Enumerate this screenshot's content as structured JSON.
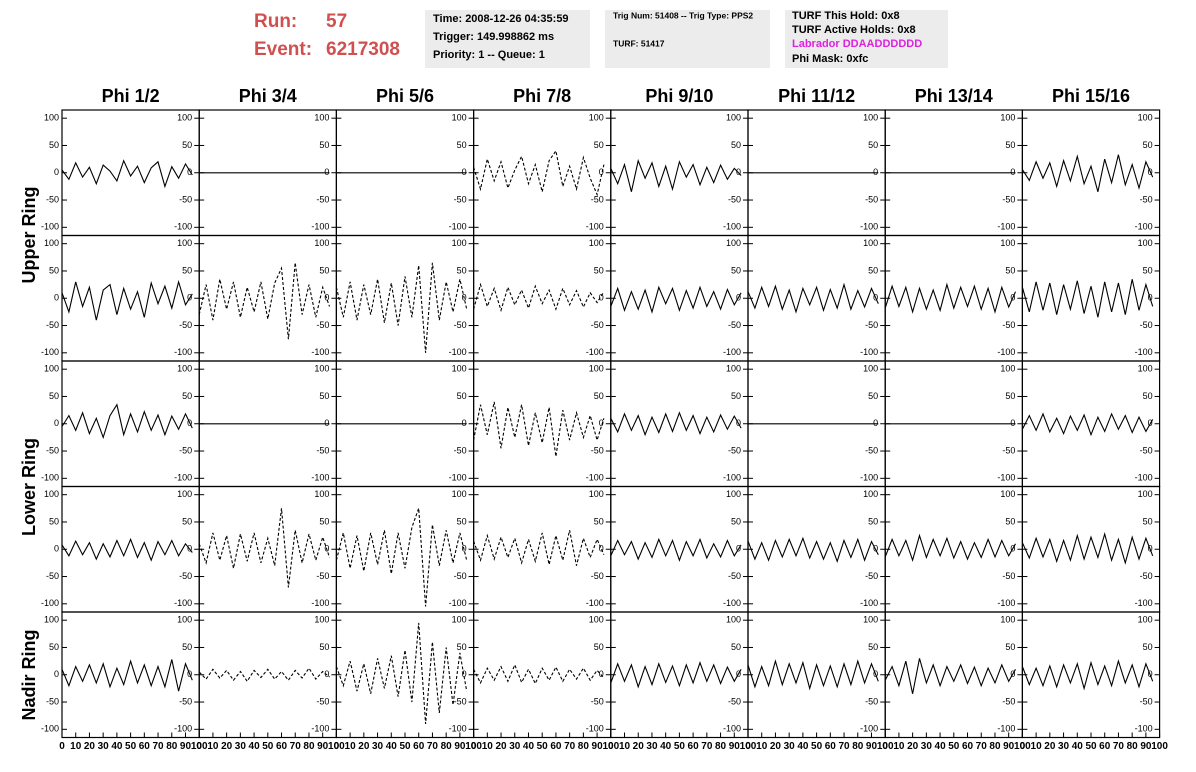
{
  "header": {
    "run_label": "Run:",
    "run": "57",
    "event_label": "Event:",
    "event": "6217308",
    "box1": [
      "Time: 2008-12-26 04:35:59",
      "Trigger: 149.998862 ms",
      "Priority: 1 -- Queue: 1"
    ],
    "box2": [
      "Trig Num: 51408 -- Trig Type: PPS2",
      "TURF: 51417"
    ],
    "box3": [
      "TURF This Hold: 0x8",
      "TURF Active Holds: 0x8",
      "Labrador DDAADDDDDD",
      "Phi Mask: 0xfc"
    ]
  },
  "chart_data": {
    "type": "line",
    "columns": [
      "Phi 1/2",
      "Phi 3/4",
      "Phi 5/6",
      "Phi 7/8",
      "Phi 9/10",
      "Phi 11/12",
      "Phi 13/14",
      "Phi 15/16"
    ],
    "rows": [
      "Upper Ring",
      "Lower Ring",
      "Nadir Ring"
    ],
    "x": [
      0,
      5,
      10,
      15,
      20,
      25,
      30,
      35,
      40,
      45,
      50,
      55,
      60,
      65,
      70,
      75,
      80,
      85,
      90,
      95
    ],
    "xlim": [
      0,
      100
    ],
    "xticks": [
      0,
      10,
      20,
      30,
      40,
      50,
      60,
      70,
      80,
      90,
      100
    ],
    "ylim": [
      -115,
      115
    ],
    "yticks": [
      100,
      50,
      0,
      -50,
      -100
    ],
    "color": "#000000",
    "panels": [
      [
        {
          "style": "solid",
          "values": [
            5,
            -12,
            18,
            -8,
            10,
            -20,
            14,
            3,
            -15,
            22,
            -6,
            12,
            -18,
            9,
            20,
            -25,
            11,
            -10,
            16,
            -4
          ]
        },
        {
          "style": "solid",
          "values": [
            0,
            0,
            0,
            0,
            0,
            0,
            0,
            0,
            0,
            0,
            0,
            0,
            0,
            0,
            0,
            0,
            0,
            0,
            0,
            0
          ]
        },
        {
          "style": "solid",
          "values": [
            0,
            0,
            0,
            0,
            0,
            0,
            0,
            0,
            0,
            0,
            0,
            0,
            0,
            0,
            0,
            0,
            0,
            0,
            0,
            0
          ]
        },
        {
          "style": "dashed",
          "values": [
            10,
            -30,
            25,
            -15,
            20,
            -28,
            5,
            30,
            -20,
            15,
            -35,
            22,
            40,
            -25,
            12,
            -30,
            28,
            -10,
            -40,
            15
          ]
        },
        {
          "style": "solid",
          "values": [
            8,
            -20,
            15,
            -35,
            22,
            -10,
            18,
            -25,
            12,
            -30,
            20,
            -8,
            15,
            -22,
            10,
            -18,
            14,
            -12,
            8,
            -5
          ]
        },
        {
          "style": "solid",
          "values": [
            0,
            0,
            0,
            0,
            0,
            0,
            0,
            0,
            0,
            0,
            0,
            0,
            0,
            0,
            0,
            0,
            0,
            0,
            0,
            0
          ]
        },
        {
          "style": "solid",
          "values": [
            0,
            0,
            0,
            0,
            0,
            0,
            0,
            0,
            0,
            0,
            0,
            0,
            0,
            0,
            0,
            0,
            0,
            0,
            0,
            0
          ]
        },
        {
          "style": "solid",
          "values": [
            6,
            -14,
            20,
            -10,
            18,
            -25,
            22,
            -15,
            30,
            -20,
            12,
            -35,
            25,
            -18,
            33,
            -22,
            15,
            -28,
            20,
            -8
          ]
        }
      ],
      [
        {
          "style": "solid",
          "values": [
            10,
            -25,
            30,
            -15,
            20,
            -40,
            15,
            25,
            -30,
            18,
            -20,
            12,
            -35,
            28,
            -10,
            22,
            -18,
            30,
            -12,
            8
          ]
        },
        {
          "style": "dashed",
          "values": [
            -30,
            25,
            -40,
            35,
            -20,
            30,
            -35,
            20,
            -25,
            30,
            -38,
            28,
            55,
            -75,
            65,
            -30,
            25,
            -35,
            20,
            -15
          ]
        },
        {
          "style": "dashed",
          "values": [
            20,
            -35,
            30,
            -40,
            25,
            -30,
            35,
            -45,
            28,
            -50,
            40,
            -35,
            60,
            -100,
            65,
            -40,
            30,
            -25,
            35,
            -20
          ]
        },
        {
          "style": "dashed",
          "values": [
            -20,
            25,
            -15,
            18,
            -22,
            20,
            -12,
            15,
            -18,
            22,
            -10,
            15,
            -20,
            18,
            -12,
            14,
            -16,
            10,
            -8,
            12
          ]
        },
        {
          "style": "solid",
          "values": [
            -15,
            18,
            -22,
            12,
            -20,
            15,
            -25,
            20,
            -10,
            18,
            -22,
            14,
            -18,
            20,
            -15,
            12,
            -20,
            16,
            -12,
            10
          ]
        },
        {
          "style": "solid",
          "values": [
            12,
            -18,
            20,
            -15,
            22,
            -20,
            15,
            -25,
            18,
            -12,
            20,
            -22,
            16,
            -18,
            25,
            -20,
            14,
            -16,
            18,
            -10
          ]
        },
        {
          "style": "solid",
          "values": [
            -18,
            22,
            -15,
            20,
            -25,
            18,
            -20,
            15,
            -22,
            25,
            -18,
            20,
            -15,
            22,
            -20,
            18,
            -25,
            20,
            -16,
            12
          ]
        },
        {
          "style": "solid",
          "values": [
            20,
            -25,
            30,
            -22,
            28,
            -30,
            25,
            -20,
            32,
            -28,
            22,
            -35,
            30,
            -25,
            28,
            -30,
            35,
            -22,
            25,
            -15
          ]
        }
      ],
      [
        {
          "style": "solid",
          "values": [
            -5,
            15,
            -12,
            20,
            -18,
            10,
            -25,
            15,
            35,
            -20,
            18,
            -15,
            22,
            -12,
            16,
            -20,
            14,
            -10,
            18,
            -8
          ]
        },
        {
          "style": "solid",
          "values": [
            0,
            0,
            0,
            0,
            0,
            0,
            0,
            0,
            0,
            0,
            0,
            0,
            0,
            0,
            0,
            0,
            0,
            0,
            0,
            0
          ]
        },
        {
          "style": "solid",
          "values": [
            0,
            0,
            0,
            0,
            0,
            0,
            0,
            0,
            0,
            0,
            0,
            0,
            0,
            0,
            0,
            0,
            0,
            0,
            0,
            0
          ]
        },
        {
          "style": "dashed",
          "values": [
            -30,
            35,
            -20,
            40,
            -45,
            30,
            -25,
            35,
            -40,
            20,
            -35,
            30,
            -60,
            25,
            -30,
            20,
            -25,
            15,
            -30,
            10
          ]
        },
        {
          "style": "solid",
          "values": [
            10,
            -15,
            18,
            -12,
            15,
            -20,
            12,
            -16,
            18,
            -14,
            20,
            -12,
            15,
            -18,
            12,
            -15,
            16,
            -10,
            14,
            -8
          ]
        },
        {
          "style": "solid",
          "values": [
            0,
            0,
            0,
            0,
            0,
            0,
            0,
            0,
            0,
            0,
            0,
            0,
            0,
            0,
            0,
            0,
            0,
            0,
            0,
            0
          ]
        },
        {
          "style": "solid",
          "values": [
            0,
            0,
            0,
            0,
            0,
            0,
            0,
            0,
            0,
            0,
            0,
            0,
            0,
            0,
            0,
            0,
            0,
            0,
            0,
            0
          ]
        },
        {
          "style": "solid",
          "values": [
            -10,
            15,
            -12,
            18,
            -15,
            10,
            -18,
            14,
            -12,
            16,
            -20,
            12,
            -14,
            18,
            -10,
            15,
            -16,
            12,
            -14,
            8
          ]
        }
      ],
      [
        {
          "style": "solid",
          "values": [
            8,
            -12,
            15,
            -10,
            12,
            -18,
            10,
            -14,
            16,
            -12,
            18,
            -15,
            12,
            -20,
            14,
            -10,
            16,
            -12,
            10,
            -6
          ]
        },
        {
          "style": "dashed",
          "values": [
            10,
            -25,
            30,
            -20,
            25,
            -35,
            28,
            -22,
            30,
            -25,
            20,
            -30,
            75,
            -70,
            35,
            -25,
            28,
            -20,
            22,
            -15
          ]
        },
        {
          "style": "dashed",
          "values": [
            -20,
            30,
            -35,
            25,
            -40,
            30,
            -28,
            35,
            -45,
            30,
            -35,
            40,
            75,
            -105,
            45,
            -30,
            35,
            -25,
            30,
            -20
          ]
        },
        {
          "style": "dashed",
          "values": [
            15,
            -20,
            25,
            -18,
            22,
            -15,
            20,
            -25,
            18,
            -22,
            30,
            -28,
            25,
            -20,
            35,
            -30,
            20,
            -15,
            18,
            -10
          ]
        },
        {
          "style": "solid",
          "values": [
            -12,
            16,
            -10,
            14,
            -18,
            12,
            -15,
            18,
            -12,
            16,
            -20,
            14,
            -12,
            18,
            -16,
            10,
            -14,
            16,
            -12,
            8
          ]
        },
        {
          "style": "solid",
          "values": [
            15,
            -18,
            12,
            -20,
            16,
            -14,
            18,
            -12,
            20,
            -16,
            14,
            -18,
            12,
            -22,
            16,
            -15,
            18,
            -20,
            14,
            -10
          ]
        },
        {
          "style": "solid",
          "values": [
            -14,
            18,
            -12,
            16,
            -20,
            25,
            -15,
            18,
            -12,
            20,
            -16,
            14,
            -18,
            12,
            -15,
            18,
            -14,
            16,
            -12,
            10
          ]
        },
        {
          "style": "solid",
          "values": [
            12,
            -16,
            20,
            -14,
            18,
            -22,
            16,
            -20,
            25,
            -18,
            22,
            -15,
            28,
            -20,
            18,
            -25,
            22,
            -18,
            20,
            -12
          ]
        }
      ],
      [
        {
          "style": "solid",
          "values": [
            10,
            -20,
            15,
            -12,
            18,
            -15,
            20,
            -22,
            12,
            -18,
            25,
            -15,
            18,
            -20,
            15,
            -22,
            28,
            -30,
            20,
            -10
          ]
        },
        {
          "style": "dashed",
          "values": [
            5,
            -8,
            10,
            -6,
            8,
            -10,
            6,
            -12,
            8,
            -5,
            10,
            -8,
            6,
            -10,
            8,
            -6,
            12,
            -8,
            6,
            -4
          ]
        },
        {
          "style": "dashed",
          "values": [
            15,
            -20,
            25,
            -30,
            20,
            -35,
            30,
            -25,
            35,
            -40,
            45,
            -50,
            95,
            -90,
            60,
            -70,
            50,
            -55,
            40,
            -30
          ]
        },
        {
          "style": "dashed",
          "values": [
            10,
            -15,
            12,
            -10,
            15,
            -12,
            18,
            -14,
            10,
            -16,
            12,
            -10,
            14,
            -12,
            10,
            -8,
            12,
            -10,
            8,
            -6
          ]
        },
        {
          "style": "solid",
          "values": [
            -15,
            20,
            -12,
            18,
            -22,
            15,
            -18,
            20,
            -14,
            16,
            -20,
            18,
            -15,
            22,
            -12,
            18,
            -16,
            14,
            -12,
            10
          ]
        },
        {
          "style": "solid",
          "values": [
            18,
            -22,
            15,
            -20,
            25,
            -18,
            20,
            -15,
            22,
            -25,
            18,
            -20,
            16,
            -22,
            20,
            -18,
            25,
            -15,
            20,
            -12
          ]
        },
        {
          "style": "solid",
          "values": [
            -10,
            15,
            -20,
            25,
            -35,
            30,
            -15,
            18,
            -20,
            15,
            -12,
            18,
            -16,
            14,
            -20,
            12,
            -15,
            18,
            -12,
            10
          ]
        },
        {
          "style": "solid",
          "values": [
            15,
            -18,
            12,
            -20,
            16,
            -22,
            18,
            -15,
            20,
            -25,
            22,
            -18,
            16,
            -20,
            25,
            -15,
            18,
            -22,
            20,
            -12
          ]
        }
      ]
    ]
  }
}
